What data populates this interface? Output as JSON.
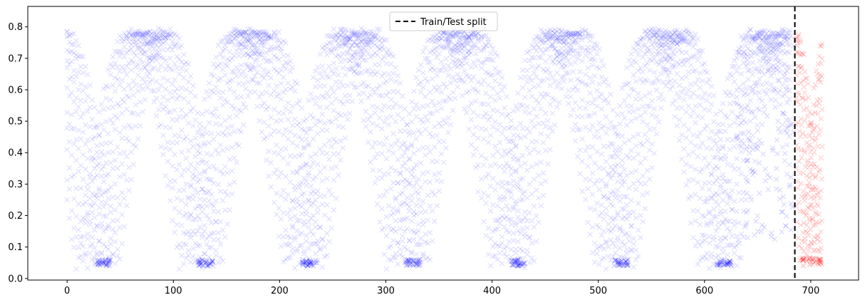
{
  "chart_data": {
    "type": "scatter",
    "title": "",
    "xlabel": "",
    "ylabel": "",
    "xlim": [
      -37,
      745
    ],
    "ylim": [
      -0.005,
      0.865
    ],
    "xticks": [
      0,
      100,
      200,
      300,
      400,
      500,
      600,
      700
    ],
    "xtick_labels": [
      "0",
      "100",
      "200",
      "300",
      "400",
      "500",
      "600",
      "700"
    ],
    "yticks": [
      0.0,
      0.1,
      0.2,
      0.3,
      0.4,
      0.5,
      0.6,
      0.7,
      0.8
    ],
    "ytick_labels": [
      "0.0",
      "0.1",
      "0.2",
      "0.3",
      "0.4",
      "0.5",
      "0.6",
      "0.7",
      "0.8"
    ],
    "grid": false,
    "legend": {
      "location": "top-center",
      "entries": [
        {
          "label": "Train/Test split",
          "style": "dashed",
          "color": "#000000"
        }
      ]
    },
    "split_x": 685,
    "cycle": {
      "period_approx": 97,
      "starts": [
        0,
        97,
        195,
        292,
        390,
        488,
        585
      ],
      "peak_y": 0.78,
      "trough_y": 0.04
    },
    "series": [
      {
        "color": "#0000ff",
        "marker": "x",
        "alpha": 0.12,
        "x": [
          0,
          20,
          28,
          40,
          55,
          75,
          97,
          110,
          135,
          160,
          195,
          208,
          230,
          260,
          292,
          305,
          330,
          355,
          390,
          402,
          425,
          455,
          488,
          500,
          525,
          550,
          585,
          598,
          620,
          650,
          684
        ],
        "y": [
          0.78,
          0.45,
          0.04,
          0.04,
          0.75,
          0.73,
          0.78,
          0.06,
          0.77,
          0.7,
          0.78,
          0.04,
          0.8,
          0.7,
          0.78,
          0.05,
          0.78,
          0.7,
          0.78,
          0.04,
          0.79,
          0.71,
          0.78,
          0.05,
          0.8,
          0.72,
          0.78,
          0.05,
          0.78,
          0.7,
          0.4
        ]
      },
      {
        "color": "#ff0000",
        "marker": "x",
        "alpha": 0.12,
        "x": [
          686,
          690,
          695,
          700,
          705,
          710
        ],
        "y": [
          0.35,
          0.25,
          0.05,
          0.3,
          0.6,
          0.75
        ]
      }
    ]
  }
}
